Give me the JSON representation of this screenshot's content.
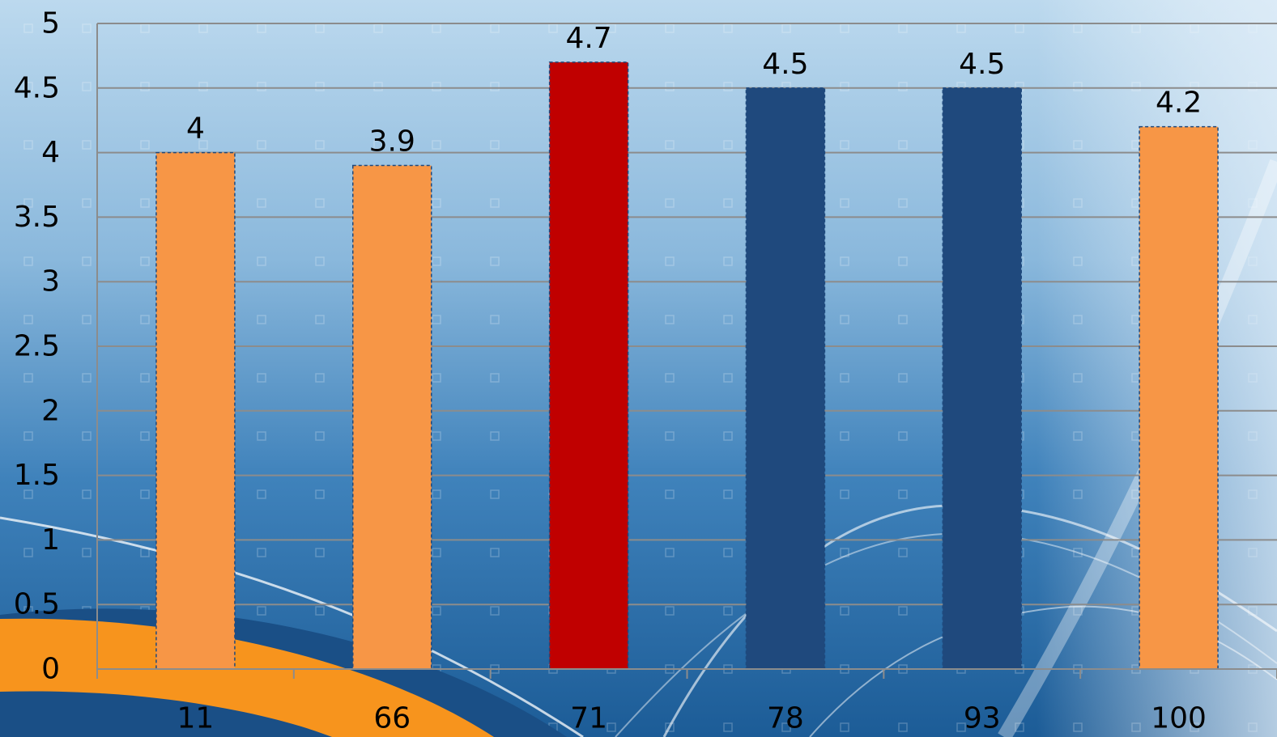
{
  "chart_data": {
    "type": "bar",
    "title": "",
    "xlabel": "",
    "ylabel": "",
    "categories": [
      "11",
      "66",
      "71",
      "78",
      "93",
      "100"
    ],
    "values": [
      4,
      3.9,
      4.7,
      4.5,
      4.5,
      4.2
    ],
    "data_labels": [
      "4",
      "3.9",
      "4.7",
      "4.5",
      "4.5",
      "4.2"
    ],
    "bar_colors": [
      "#F79646",
      "#F79646",
      "#C00000",
      "#1F497D",
      "#1F497D",
      "#F79646"
    ],
    "ylim": [
      0,
      5
    ],
    "yticks": [
      0,
      0.5,
      1,
      1.5,
      2,
      2.5,
      3,
      3.5,
      4,
      4.5,
      5
    ],
    "ytick_labels": [
      "0",
      "0.5",
      "1",
      "1.5",
      "2",
      "2.5",
      "3",
      "3.5",
      "4",
      "4.5",
      "5"
    ],
    "grid": true,
    "legend": "none"
  }
}
